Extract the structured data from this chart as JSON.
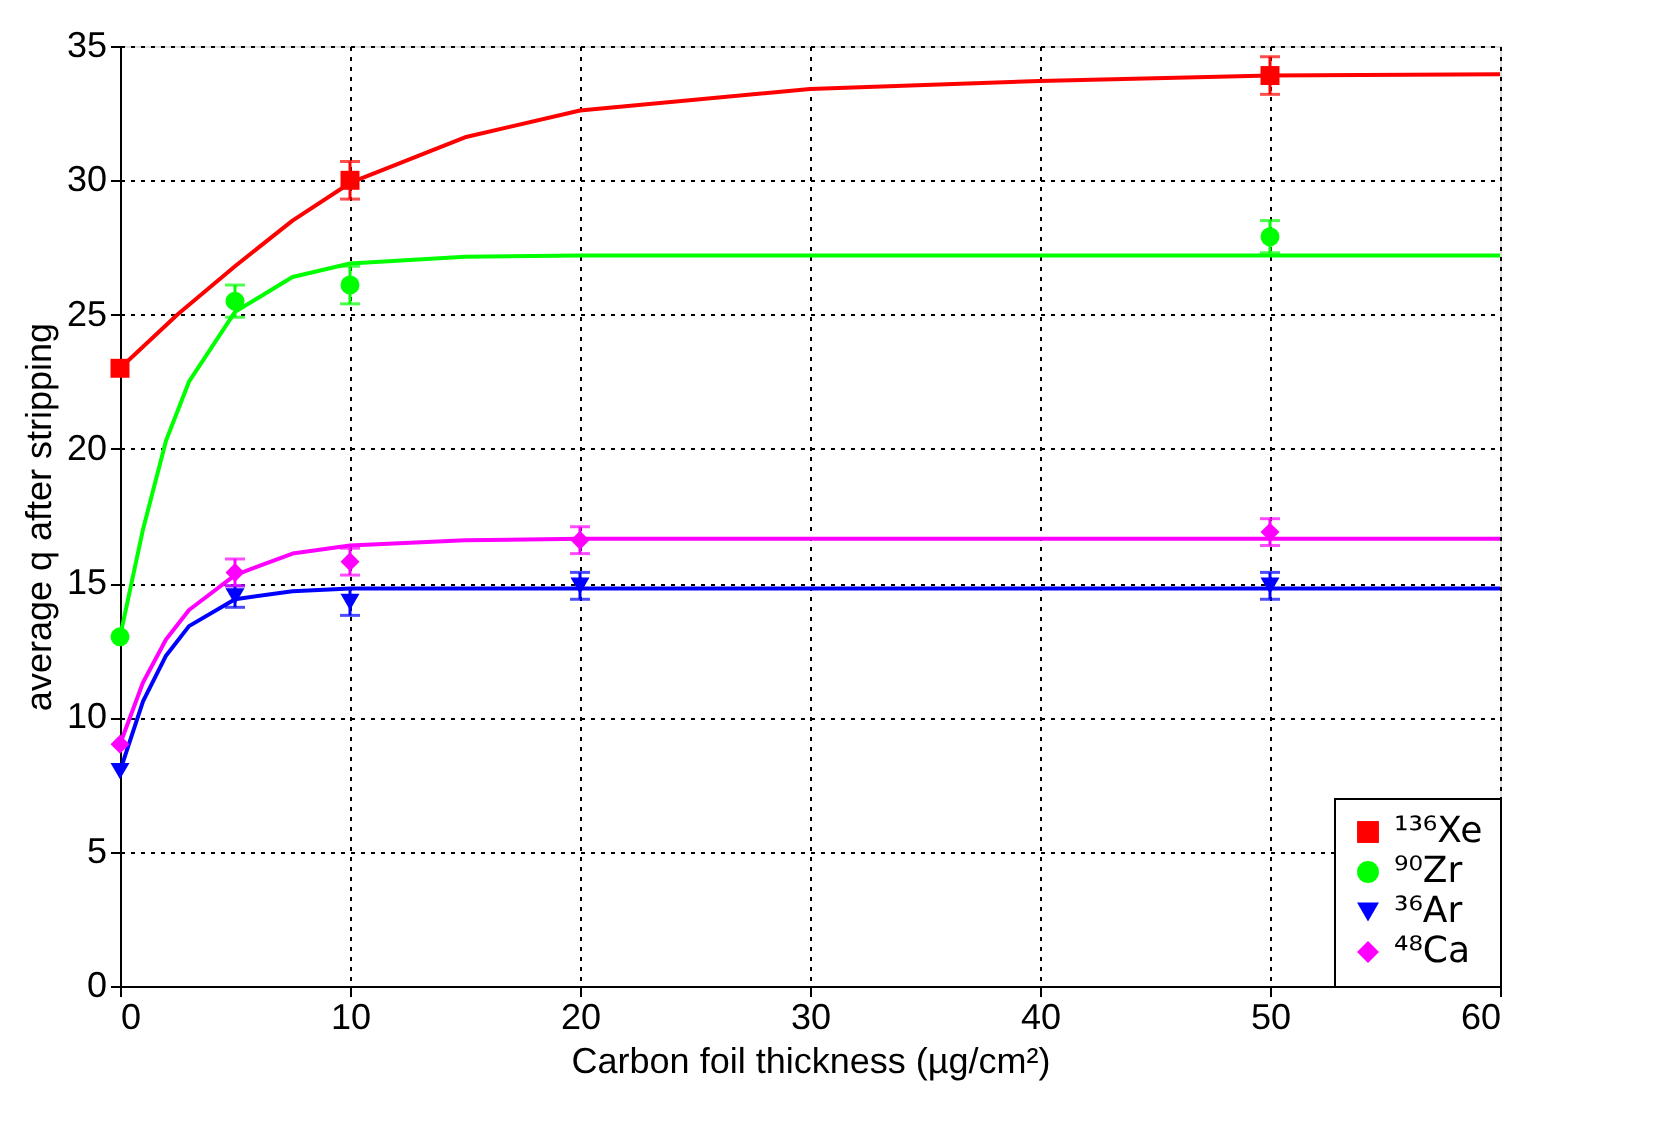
{
  "chart_data": {
    "type": "scatter",
    "xlabel": "Carbon foil thickness (µg/cm²)",
    "ylabel": "average q after stripping",
    "xlim": [
      0,
      60
    ],
    "xticks": [
      0,
      10,
      20,
      30,
      40,
      50,
      60
    ],
    "ylim": [
      0,
      35
    ],
    "yticks": [
      0,
      5,
      10,
      15,
      20,
      25,
      30,
      35
    ],
    "grid": true,
    "legend": "bottom right",
    "series": [
      {
        "name": "¹³⁶Xe",
        "marker": "square",
        "color": "#ff0000",
        "x": [
          0,
          10,
          50
        ],
        "values": [
          23,
          30,
          33.9
        ],
        "errors": [
          null,
          0.7,
          0.7
        ]
      },
      {
        "name": "⁹⁰Zr",
        "marker": "circle",
        "color": "#00ff00",
        "x": [
          0,
          5,
          10,
          50
        ],
        "values": [
          13,
          25.5,
          26.1,
          27.9
        ],
        "errors": [
          null,
          0.6,
          0.7,
          0.6
        ]
      },
      {
        "name": "³⁶Ar",
        "marker": "triangle-down",
        "color": "#0000ff",
        "x": [
          0,
          5,
          10,
          20,
          50
        ],
        "values": [
          8,
          14.5,
          14.3,
          14.9,
          14.9
        ],
        "errors": [
          null,
          0.4,
          0.5,
          0.5,
          0.5
        ]
      },
      {
        "name": "⁴⁸Ca",
        "marker": "diamond",
        "color": "#ff00ff",
        "x": [
          0,
          5,
          10,
          20,
          50
        ],
        "values": [
          9,
          15.4,
          15.8,
          16.6,
          16.9
        ],
        "errors": [
          null,
          0.5,
          0.5,
          0.5,
          0.5
        ]
      },
      {
        "type": "line",
        "color": "#ff0000",
        "x": [
          0,
          2.5,
          5,
          7.5,
          10,
          15,
          20,
          30,
          40,
          50,
          60
        ],
        "values": [
          23,
          25.0,
          26.8,
          28.5,
          29.9,
          31.6,
          32.6,
          33.4,
          33.7,
          33.9,
          33.95
        ]
      },
      {
        "type": "line",
        "color": "#00ff00",
        "x": [
          0,
          1,
          2,
          3,
          5,
          7.5,
          10,
          15,
          20,
          60
        ],
        "values": [
          13,
          17,
          20.3,
          22.5,
          25.1,
          26.4,
          26.9,
          27.15,
          27.2,
          27.2
        ]
      },
      {
        "type": "line",
        "color": "#0000ff",
        "x": [
          0,
          1,
          2,
          3,
          5,
          7.5,
          10,
          60
        ],
        "values": [
          8,
          10.6,
          12.3,
          13.4,
          14.4,
          14.7,
          14.8,
          14.8
        ]
      },
      {
        "type": "line",
        "color": "#ff00ff",
        "x": [
          0,
          1,
          2,
          3,
          5,
          7.5,
          10,
          15,
          20,
          60
        ],
        "values": [
          9,
          11.3,
          12.9,
          14.0,
          15.3,
          16.1,
          16.4,
          16.6,
          16.65,
          16.65
        ]
      }
    ]
  }
}
